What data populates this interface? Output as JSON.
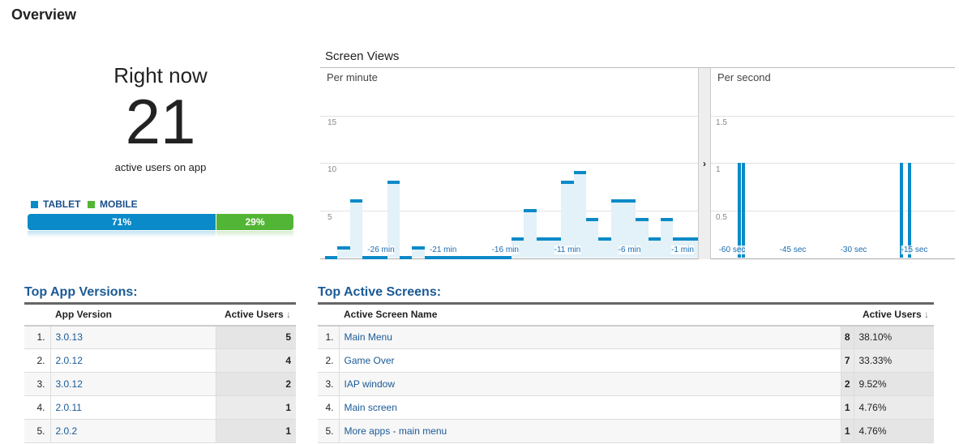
{
  "page": {
    "title": "Overview"
  },
  "right_now": {
    "label": "Right now",
    "count": "21",
    "sublabel": "active users on app",
    "legend": [
      {
        "name": "TABLET",
        "color": "#0a8ac8"
      },
      {
        "name": "MOBILE",
        "color": "#52b535"
      }
    ],
    "split": [
      {
        "name": "TABLET",
        "percent": 71,
        "label": "71%"
      },
      {
        "name": "MOBILE",
        "percent": 29,
        "label": "29%"
      }
    ]
  },
  "screen_views": {
    "title": "Screen Views",
    "expand_icon": "chevron-right-icon"
  },
  "chart_data": [
    {
      "type": "bar",
      "title": "Per minute",
      "ylim": [
        0,
        16
      ],
      "yticks": [
        "5",
        "10",
        "15"
      ],
      "ytick_values": [
        5,
        10,
        15
      ],
      "xticks": [
        "-26 min",
        "-21 min",
        "-16 min",
        "-11 min",
        "-6 min",
        "-1 min"
      ],
      "x": [
        -30,
        -29,
        -28,
        -27,
        -26,
        -25,
        -24,
        -23,
        -22,
        -21,
        -20,
        -19,
        -18,
        -17,
        -16,
        -15,
        -14,
        -13,
        -12,
        -11,
        -10,
        -9,
        -8,
        -7,
        -6,
        -5,
        -4,
        -3,
        -2,
        -1
      ],
      "values": [
        0,
        1,
        6,
        0,
        0,
        8,
        0,
        1,
        0,
        0,
        0,
        0,
        0,
        0,
        0,
        2,
        5,
        2,
        2,
        8,
        9,
        4,
        2,
        6,
        6,
        4,
        2,
        4,
        2,
        2
      ],
      "color": "#0a8ac8",
      "fill": "#e3f1f8"
    },
    {
      "type": "bar",
      "title": "Per second",
      "ylim": [
        0,
        1.6
      ],
      "yticks": [
        "0.5",
        "1",
        "1.5"
      ],
      "ytick_values": [
        0.5,
        1,
        1.5
      ],
      "xticks": [
        "-60 sec",
        "-45 sec",
        "-30 sec",
        "-15 sec"
      ],
      "xtick_values": [
        -60,
        -45,
        -30,
        -15
      ],
      "x": [
        -58,
        -57,
        -18,
        -16
      ],
      "values": [
        1,
        1,
        1,
        1
      ],
      "color": "#0a8ac8"
    }
  ],
  "app_versions": {
    "title": "Top App Versions:",
    "col_name": "App Version",
    "col_users": "Active Users",
    "rows": [
      {
        "rank": "1.",
        "name": "3.0.13",
        "users": "5"
      },
      {
        "rank": "2.",
        "name": "2.0.12",
        "users": "4"
      },
      {
        "rank": "3.",
        "name": "3.0.12",
        "users": "2"
      },
      {
        "rank": "4.",
        "name": "2.0.11",
        "users": "1"
      },
      {
        "rank": "5.",
        "name": "2.0.2",
        "users": "1"
      }
    ]
  },
  "active_screens": {
    "title": "Top Active Screens:",
    "col_name": "Active Screen Name",
    "col_users": "Active Users",
    "rows": [
      {
        "rank": "1.",
        "name": "Main Menu",
        "users": "8",
        "pct": "38.10%"
      },
      {
        "rank": "2.",
        "name": "Game Over",
        "users": "7",
        "pct": "33.33%"
      },
      {
        "rank": "3.",
        "name": "IAP window",
        "users": "2",
        "pct": "9.52%"
      },
      {
        "rank": "4.",
        "name": "Main screen",
        "users": "1",
        "pct": "4.76%"
      },
      {
        "rank": "5.",
        "name": "More apps - main menu",
        "users": "1",
        "pct": "4.76%"
      }
    ]
  }
}
